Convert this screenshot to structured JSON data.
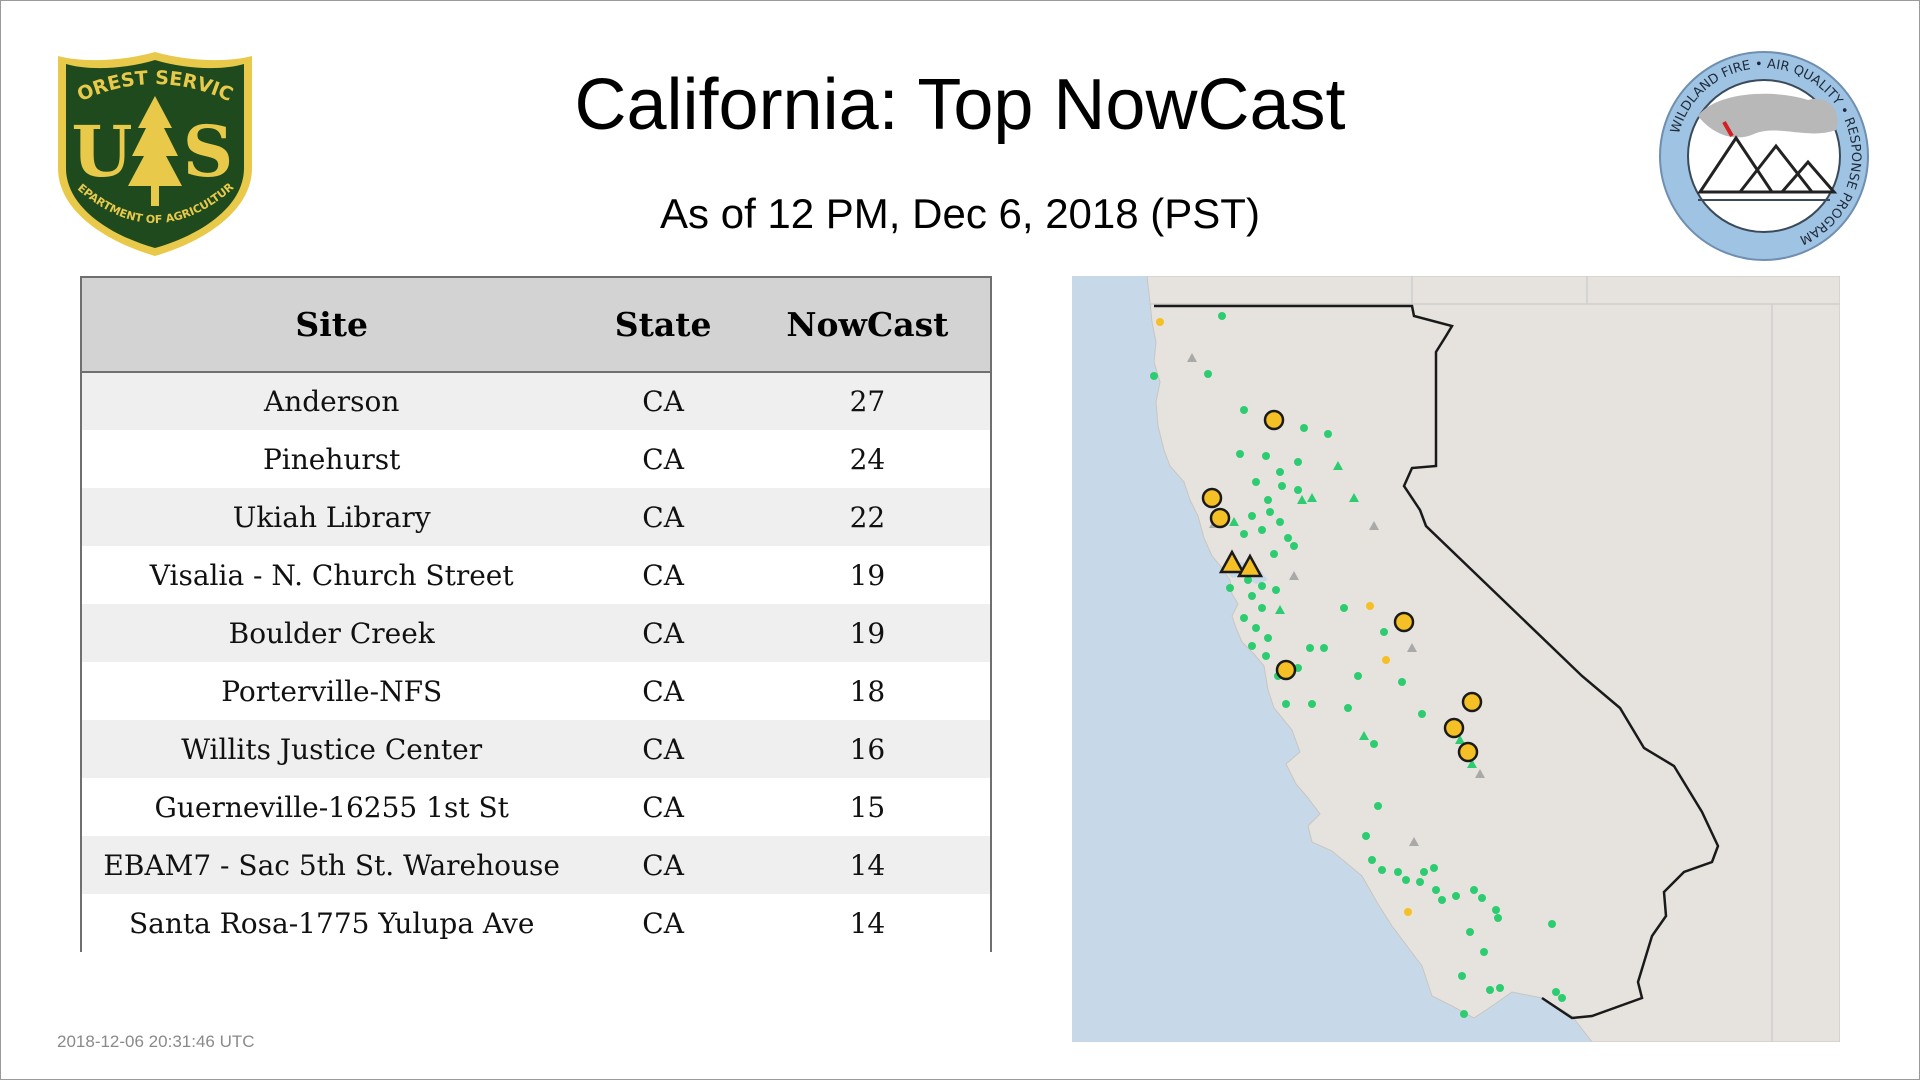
{
  "header": {
    "title": "California: Top NowCast",
    "subtitle": "As of 12 PM, Dec  6, 2018 (PST)"
  },
  "logos": {
    "left": {
      "top_text": "FOREST SERVICE",
      "letters": "US",
      "bottom_text": "DEPARTMENT OF AGRICULTURE",
      "icon": "forest-service-shield-icon",
      "color": "#1e4a1e",
      "accent": "#e8c94a"
    },
    "right": {
      "text": "WILDLAND FIRE • AIR QUALITY • RESPONSE PROGRAM",
      "icon": "wildland-fire-air-quality-icon",
      "color": "#9fc3e3"
    }
  },
  "table": {
    "headers": [
      "Site",
      "State",
      "NowCast"
    ],
    "rows": [
      [
        "Anderson",
        "CA",
        "27"
      ],
      [
        "Pinehurst",
        "CA",
        "24"
      ],
      [
        "Ukiah Library",
        "CA",
        "22"
      ],
      [
        "Visalia - N. Church Street",
        "CA",
        "19"
      ],
      [
        "Boulder Creek",
        "CA",
        "19"
      ],
      [
        "Porterville-NFS",
        "CA",
        "18"
      ],
      [
        "Willits Justice Center",
        "CA",
        "16"
      ],
      [
        "Guerneville-16255 1st St",
        "CA",
        "15"
      ],
      [
        "EBAM7 - Sac 5th St. Warehouse",
        "CA",
        "14"
      ],
      [
        "Santa Rosa-1775 Yulupa Ave",
        "CA",
        "14"
      ]
    ]
  },
  "map": {
    "region": "California",
    "colors": {
      "ocean": "#c7d9e8",
      "land": "#e6e3df",
      "good": "#2ecc71",
      "moderate": "#f4c025",
      "unavailable": "#a9a9a9",
      "border": "#1a1a1a"
    }
  },
  "footer": {
    "timestamp": "2018-12-06 20:31:46 UTC"
  }
}
